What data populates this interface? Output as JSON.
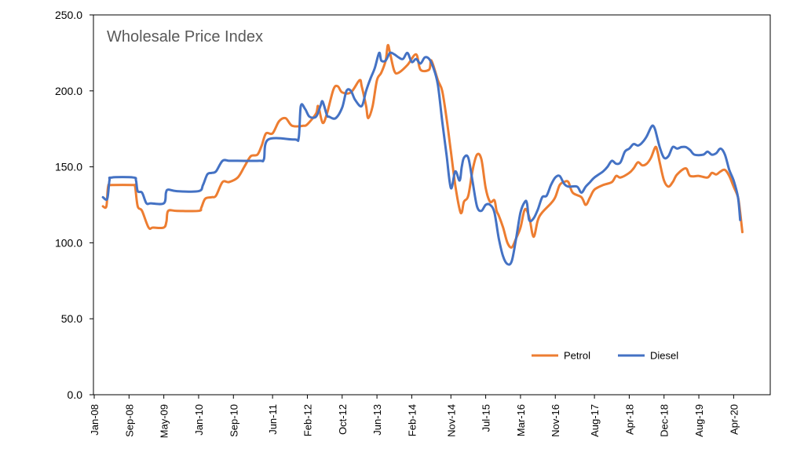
{
  "chart_data": {
    "type": "line",
    "title": "Wholesale Price Index",
    "xlabel": "",
    "ylabel": "",
    "ylim": [
      0,
      250
    ],
    "yticks": [
      "0.0",
      "50.0",
      "100.0",
      "150.0",
      "200.0",
      "250.0"
    ],
    "xticks": [
      "Jan-08",
      "Sep-08",
      "May-09",
      "Jan-10",
      "Sep-10",
      "Jun-11",
      "Feb-12",
      "Oct-12",
      "Jun-13",
      "Feb-14",
      "Nov-14",
      "Jul-15",
      "Mar-16",
      "Nov-16",
      "Aug-17",
      "Apr-18",
      "Dec-18",
      "Aug-19",
      "Apr-20"
    ],
    "grid": false,
    "legend": "bottom-right",
    "x_unit": "months since Jan-08",
    "series": [
      {
        "name": "Petrol",
        "color": "#ED7D31",
        "points": [
          [
            2,
            124
          ],
          [
            2.8,
            124
          ],
          [
            3.2,
            137
          ],
          [
            4,
            138
          ],
          [
            9,
            138
          ],
          [
            9.4,
            137
          ],
          [
            10,
            124
          ],
          [
            11,
            121
          ],
          [
            12.5,
            110
          ],
          [
            13.5,
            110
          ],
          [
            16,
            110
          ],
          [
            16.6,
            114
          ],
          [
            17,
            121
          ],
          [
            19,
            121
          ],
          [
            24,
            121
          ],
          [
            24.6,
            123
          ],
          [
            25.5,
            129
          ],
          [
            27,
            130
          ],
          [
            28,
            131
          ],
          [
            29.5,
            140
          ],
          [
            31,
            140
          ],
          [
            33,
            143
          ],
          [
            34.5,
            150
          ],
          [
            36,
            157
          ],
          [
            37.5,
            158
          ],
          [
            38.5,
            164
          ],
          [
            39.5,
            172
          ],
          [
            41,
            172
          ],
          [
            42.5,
            180
          ],
          [
            44,
            182
          ],
          [
            45.5,
            177
          ],
          [
            48,
            177
          ],
          [
            49,
            178
          ],
          [
            51,
            185
          ],
          [
            51.5,
            190
          ],
          [
            52.5,
            179
          ],
          [
            53.5,
            185
          ],
          [
            55,
            201
          ],
          [
            56,
            203
          ],
          [
            57,
            199
          ],
          [
            59,
            199
          ],
          [
            61,
            207
          ],
          [
            61.5,
            203
          ],
          [
            62.5,
            190
          ],
          [
            63,
            182
          ],
          [
            64,
            190
          ],
          [
            65,
            207
          ],
          [
            66,
            212
          ],
          [
            67,
            220
          ],
          [
            67.5,
            230
          ],
          [
            68,
            225
          ],
          [
            69,
            213
          ],
          [
            70,
            212
          ],
          [
            72,
            217
          ],
          [
            74,
            224
          ],
          [
            75,
            214
          ],
          [
            77,
            214
          ],
          [
            77.5,
            220
          ],
          [
            79,
            207
          ],
          [
            80,
            200
          ],
          [
            81,
            182
          ],
          [
            82,
            160
          ],
          [
            83,
            138
          ],
          [
            84,
            122
          ],
          [
            84.5,
            120
          ],
          [
            85,
            127
          ],
          [
            86,
            131
          ],
          [
            87,
            148
          ],
          [
            88,
            158
          ],
          [
            89,
            155
          ],
          [
            90,
            136
          ],
          [
            91,
            127
          ],
          [
            92,
            128
          ],
          [
            92.5,
            121
          ],
          [
            93,
            118
          ],
          [
            94,
            110
          ],
          [
            95,
            100
          ],
          [
            96,
            97
          ],
          [
            97,
            103
          ],
          [
            98,
            110
          ],
          [
            99,
            122
          ],
          [
            100,
            117
          ],
          [
            101,
            104
          ],
          [
            102,
            115
          ],
          [
            103,
            120
          ],
          [
            105,
            126
          ],
          [
            106,
            130
          ],
          [
            107,
            138
          ],
          [
            108,
            140
          ],
          [
            109,
            140
          ],
          [
            110,
            133
          ],
          [
            112,
            130
          ],
          [
            113,
            125
          ],
          [
            114,
            130
          ],
          [
            115,
            135
          ],
          [
            117,
            138
          ],
          [
            119,
            140
          ],
          [
            120,
            144
          ],
          [
            121,
            143
          ],
          [
            123,
            146
          ],
          [
            124,
            149
          ],
          [
            125,
            153
          ],
          [
            126,
            151
          ],
          [
            127,
            152
          ],
          [
            128,
            156
          ],
          [
            129,
            163
          ],
          [
            129.5,
            160
          ],
          [
            130,
            153
          ],
          [
            131,
            141
          ],
          [
            132,
            137
          ],
          [
            133,
            140
          ],
          [
            134,
            145
          ],
          [
            136,
            149
          ],
          [
            137,
            144
          ],
          [
            139,
            144
          ],
          [
            141,
            143
          ],
          [
            142,
            146
          ],
          [
            143,
            145
          ],
          [
            144,
            147
          ],
          [
            145,
            148
          ],
          [
            146,
            144
          ],
          [
            147,
            137
          ],
          [
            148,
            130
          ],
          [
            148.5,
            120
          ],
          [
            149,
            107
          ]
        ]
      },
      {
        "name": "Diesel",
        "color": "#4472C4",
        "points": [
          [
            2,
            130
          ],
          [
            3,
            129
          ],
          [
            3.5,
            141
          ],
          [
            4,
            143
          ],
          [
            9,
            143
          ],
          [
            9.6,
            141
          ],
          [
            10,
            134
          ],
          [
            11,
            133
          ],
          [
            12,
            126
          ],
          [
            13,
            126
          ],
          [
            16,
            126
          ],
          [
            16.5,
            133
          ],
          [
            17,
            135
          ],
          [
            19,
            134
          ],
          [
            24,
            134
          ],
          [
            25,
            138
          ],
          [
            26,
            145
          ],
          [
            27,
            146
          ],
          [
            28,
            147
          ],
          [
            29.5,
            154
          ],
          [
            31,
            154
          ],
          [
            33,
            154
          ],
          [
            38,
            154
          ],
          [
            39,
            155
          ],
          [
            40,
            168
          ],
          [
            46,
            168
          ],
          [
            47,
            169
          ],
          [
            47.5,
            190
          ],
          [
            48.5,
            188
          ],
          [
            49.5,
            183
          ],
          [
            51,
            183
          ],
          [
            52,
            190
          ],
          [
            52.5,
            193
          ],
          [
            53.5,
            184
          ],
          [
            54,
            183
          ],
          [
            55.5,
            182
          ],
          [
            57,
            189
          ],
          [
            58,
            200
          ],
          [
            59,
            200
          ],
          [
            60,
            194
          ],
          [
            61.5,
            190
          ],
          [
            62.5,
            200
          ],
          [
            63.5,
            208
          ],
          [
            64.5,
            215
          ],
          [
            65.5,
            225
          ],
          [
            66,
            220
          ],
          [
            67,
            220
          ],
          [
            68,
            225
          ],
          [
            69,
            224
          ],
          [
            70,
            222
          ],
          [
            71,
            221
          ],
          [
            72,
            225
          ],
          [
            73,
            219
          ],
          [
            74,
            221
          ],
          [
            75,
            218
          ],
          [
            76,
            222
          ],
          [
            77,
            221
          ],
          [
            78,
            215
          ],
          [
            79,
            204
          ],
          [
            80,
            180
          ],
          [
            81,
            158
          ],
          [
            82,
            136
          ],
          [
            83,
            147
          ],
          [
            84,
            141
          ],
          [
            84.5,
            150
          ],
          [
            85,
            156
          ],
          [
            86,
            156
          ],
          [
            87,
            140
          ],
          [
            88,
            124
          ],
          [
            89,
            121
          ],
          [
            90,
            125
          ],
          [
            91,
            125
          ],
          [
            92,
            120
          ],
          [
            93,
            103
          ],
          [
            94,
            91
          ],
          [
            95,
            86
          ],
          [
            96,
            88
          ],
          [
            97,
            103
          ],
          [
            98,
            120
          ],
          [
            99,
            127
          ],
          [
            99.5,
            126
          ],
          [
            100,
            115
          ],
          [
            101,
            116
          ],
          [
            102,
            122
          ],
          [
            103,
            130
          ],
          [
            104,
            131
          ],
          [
            105,
            138
          ],
          [
            106,
            143
          ],
          [
            107,
            144
          ],
          [
            108,
            139
          ],
          [
            109,
            137
          ],
          [
            111,
            137
          ],
          [
            112,
            133
          ],
          [
            113,
            137
          ],
          [
            114,
            140
          ],
          [
            115,
            143
          ],
          [
            117,
            147
          ],
          [
            118,
            150
          ],
          [
            119,
            154
          ],
          [
            120,
            152
          ],
          [
            121,
            153
          ],
          [
            122,
            160
          ],
          [
            123,
            162
          ],
          [
            124,
            165
          ],
          [
            125,
            164
          ],
          [
            126,
            166
          ],
          [
            127,
            170
          ],
          [
            128,
            176
          ],
          [
            128.5,
            177
          ],
          [
            129,
            174
          ],
          [
            130,
            163
          ],
          [
            131,
            156
          ],
          [
            132,
            157
          ],
          [
            133,
            163
          ],
          [
            134,
            162
          ],
          [
            135,
            163
          ],
          [
            136,
            163
          ],
          [
            137,
            161
          ],
          [
            138,
            158
          ],
          [
            140,
            158
          ],
          [
            141,
            160
          ],
          [
            142,
            158
          ],
          [
            143,
            159
          ],
          [
            144,
            162
          ],
          [
            145,
            158
          ],
          [
            146,
            148
          ],
          [
            147,
            141
          ],
          [
            148,
            130
          ],
          [
            148.5,
            115
          ]
        ]
      }
    ]
  }
}
